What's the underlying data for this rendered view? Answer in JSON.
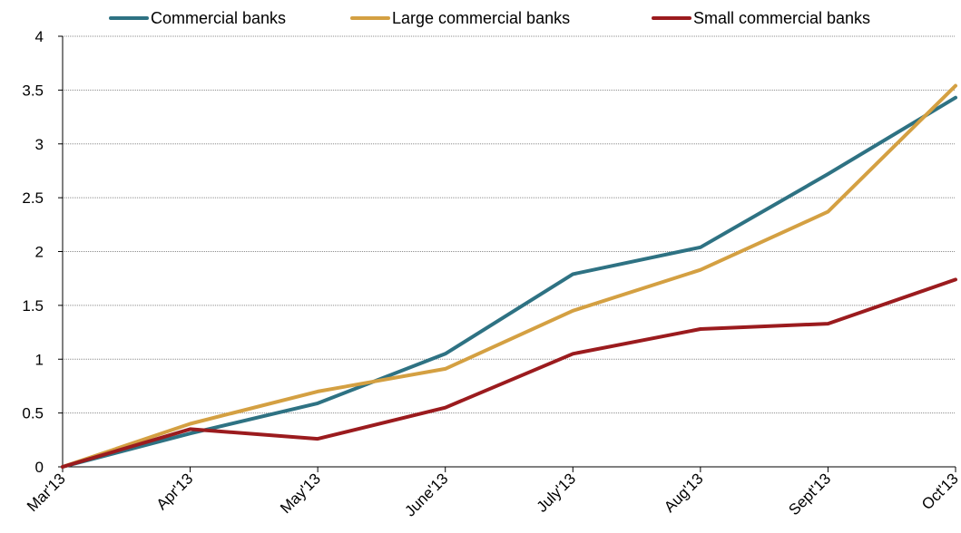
{
  "chart_data": {
    "type": "line",
    "categories": [
      "Mar'13",
      "Apr'13",
      "May'13",
      "June'13",
      "July'13",
      "Aug'13",
      "Sept'13",
      "Oct'13"
    ],
    "series": [
      {
        "name": "Commercial banks",
        "color": "#2E7283",
        "values": [
          0,
          0.31,
          0.59,
          1.05,
          1.79,
          2.04,
          2.72,
          3.43
        ]
      },
      {
        "name": "Large commercial banks",
        "color": "#D4A042",
        "values": [
          0,
          0.4,
          0.7,
          0.91,
          1.45,
          1.83,
          2.37,
          3.54
        ]
      },
      {
        "name": "Small commercial banks",
        "color": "#9B1B1E",
        "values": [
          0,
          0.35,
          0.26,
          0.55,
          1.05,
          1.28,
          1.33,
          1.74
        ]
      }
    ],
    "title": "",
    "xlabel": "",
    "ylabel": "",
    "ylim": [
      0,
      4
    ],
    "yticks": [
      "0",
      "0.5",
      "1",
      "1.5",
      "2",
      "2.5",
      "3",
      "3.5",
      "4"
    ],
    "grid": true,
    "legend_position": "top"
  }
}
